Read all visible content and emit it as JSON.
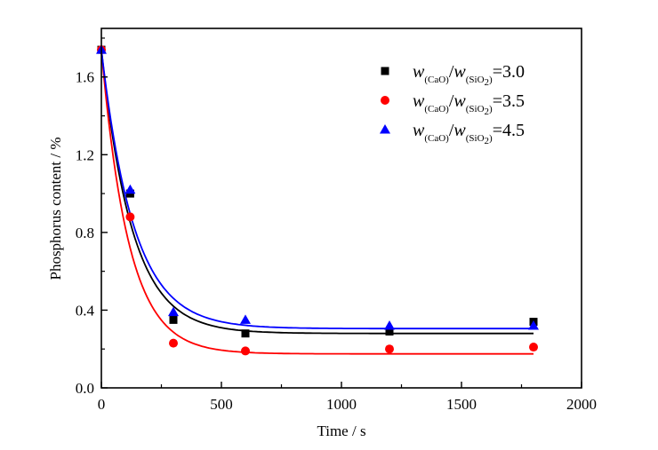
{
  "chart_data": {
    "type": "scatter",
    "title": "",
    "xlabel": "Time / s",
    "ylabel": "Phosphorus content / %",
    "xlim": [
      0,
      2000
    ],
    "ylim": [
      0,
      1.85
    ],
    "xticks": [
      0,
      500,
      1000,
      1500,
      2000
    ],
    "xtick_labels": [
      "0",
      "500",
      "1000",
      "1500",
      "2000"
    ],
    "yticks": [
      0.0,
      0.4,
      0.8,
      1.2,
      1.6
    ],
    "ytick_labels": [
      "0.0",
      "0.4",
      "0.8",
      "1.2",
      "1.6"
    ],
    "grid": false,
    "legend_position": "top-right",
    "x": [
      0,
      120,
      300,
      600,
      1200,
      1800
    ],
    "series": [
      {
        "name": "w(CaO)/w(SiO2)=3.0",
        "ratio": "3.0",
        "marker": "square",
        "color": "#000000",
        "values": [
          1.74,
          1.0,
          0.35,
          0.28,
          0.29,
          0.34
        ],
        "fit": {
          "y0": 1.74,
          "asymptote": 0.28,
          "rate": 0.0078
        }
      },
      {
        "name": "w(CaO)/w(SiO2)=3.5",
        "ratio": "3.5",
        "marker": "circle",
        "color": "#ff0000",
        "values": [
          1.74,
          0.88,
          0.23,
          0.19,
          0.2,
          0.21
        ],
        "fit": {
          "y0": 1.74,
          "asymptote": 0.175,
          "rate": 0.0088
        }
      },
      {
        "name": "w(CaO)/w(SiO2)=4.5",
        "ratio": "4.5",
        "marker": "triangle",
        "color": "#0000ff",
        "values": [
          1.74,
          1.02,
          0.39,
          0.35,
          0.32,
          0.32
        ],
        "fit": {
          "y0": 1.74,
          "asymptote": 0.305,
          "rate": 0.0074
        }
      }
    ],
    "legend": {
      "w": "w",
      "sub1": "(CaO)",
      "slash": "/",
      "sub2": "(SiO",
      "sub2_num": "2",
      "sub2_close": ")",
      "eq": "="
    }
  }
}
